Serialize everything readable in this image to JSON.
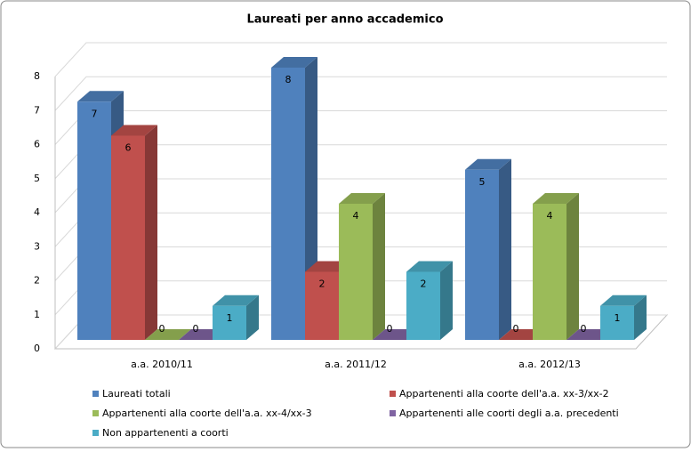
{
  "chart_data": {
    "type": "bar",
    "title": "Laureati per anno accademico",
    "categories": [
      "a.a. 2010/11",
      "a.a. 2011/12",
      "a.a. 2012/13"
    ],
    "series": [
      {
        "name": "Laureati totali",
        "color": "#4f81bd",
        "values": [
          7,
          8,
          5
        ]
      },
      {
        "name": "Appartenenti alla coorte dell'a.a. xx-3/xx-2",
        "color": "#c0504d",
        "values": [
          6,
          2,
          0
        ]
      },
      {
        "name": "Appartenenti alla coorte dell'a.a. xx-4/xx-3",
        "color": "#9bbb59",
        "values": [
          0,
          4,
          4
        ]
      },
      {
        "name": "Appartenenti alle coorti degli a.a. precedenti",
        "color": "#8064a2",
        "values": [
          0,
          0,
          0
        ]
      },
      {
        "name": "Non appartenenti  a coorti",
        "color": "#4bacc6",
        "values": [
          1,
          2,
          1
        ]
      }
    ],
    "ylim": [
      0,
      8
    ],
    "yticks": [
      0,
      1,
      2,
      3,
      4,
      5,
      6,
      7,
      8
    ],
    "grid": true
  }
}
